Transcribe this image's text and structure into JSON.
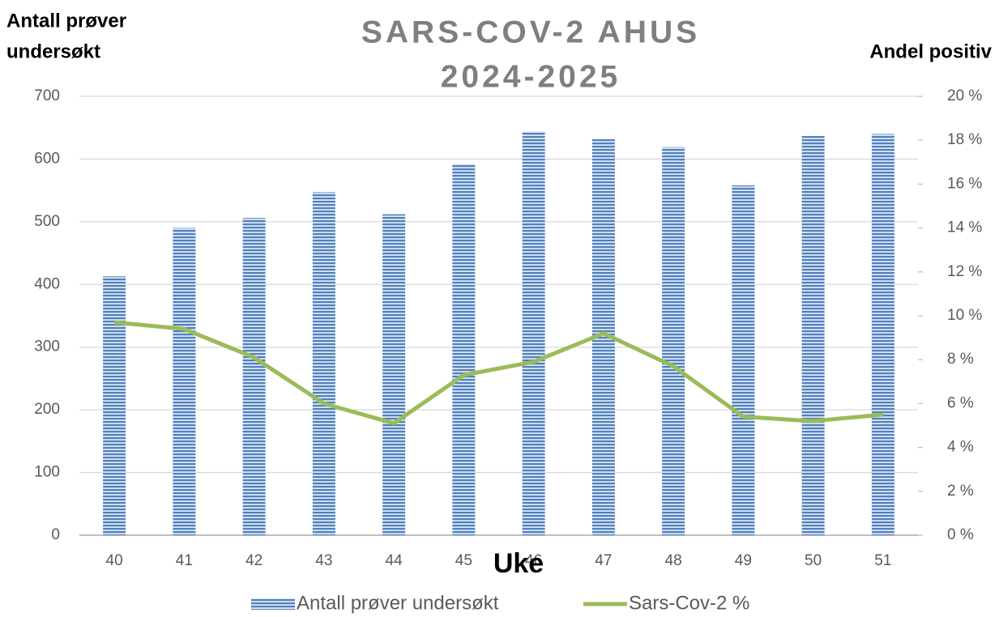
{
  "chart_data": {
    "type": "bar",
    "title": [
      "SARS-COV-2 AHUS",
      "2024-2025"
    ],
    "y_label": [
      "Antall prøver",
      "undersøkt"
    ],
    "y2_label": "Andel positiv",
    "x_label": "Uke",
    "categories": [
      "40",
      "41",
      "42",
      "43",
      "44",
      "45",
      "46",
      "47",
      "48",
      "49",
      "50",
      "51"
    ],
    "series": [
      {
        "name": "Antall prøver undersøkt",
        "type": "bar",
        "color": "#4f81bd",
        "values": [
          413,
          490,
          506,
          547,
          512,
          592,
          644,
          632,
          619,
          558,
          637,
          640
        ]
      },
      {
        "name": "Sars-Cov-2 %",
        "type": "line",
        "axis": "y2",
        "color": "#9bbb59",
        "values": [
          9.7,
          9.4,
          8.1,
          6.0,
          5.1,
          7.3,
          7.9,
          9.2,
          7.7,
          5.4,
          5.2,
          5.5
        ]
      }
    ],
    "ylim": [
      0,
      700
    ],
    "yticks": [
      0,
      100,
      200,
      300,
      400,
      500,
      600,
      700
    ],
    "y2lim": [
      0,
      20
    ],
    "y2ticks": [
      {
        "value": 0,
        "label": "0 %"
      },
      {
        "value": 2,
        "label": "2 %"
      },
      {
        "value": 4,
        "label": "4 %"
      },
      {
        "value": 6,
        "label": "6 %"
      },
      {
        "value": 8,
        "label": "8 %"
      },
      {
        "value": 10,
        "label": "10 %"
      },
      {
        "value": 12,
        "label": "12 %"
      },
      {
        "value": 14,
        "label": "14 %"
      },
      {
        "value": 16,
        "label": "16 %"
      },
      {
        "value": 18,
        "label": "18 %"
      },
      {
        "value": 20,
        "label": "20 %"
      }
    ],
    "grid": true,
    "legend": "bottom"
  }
}
